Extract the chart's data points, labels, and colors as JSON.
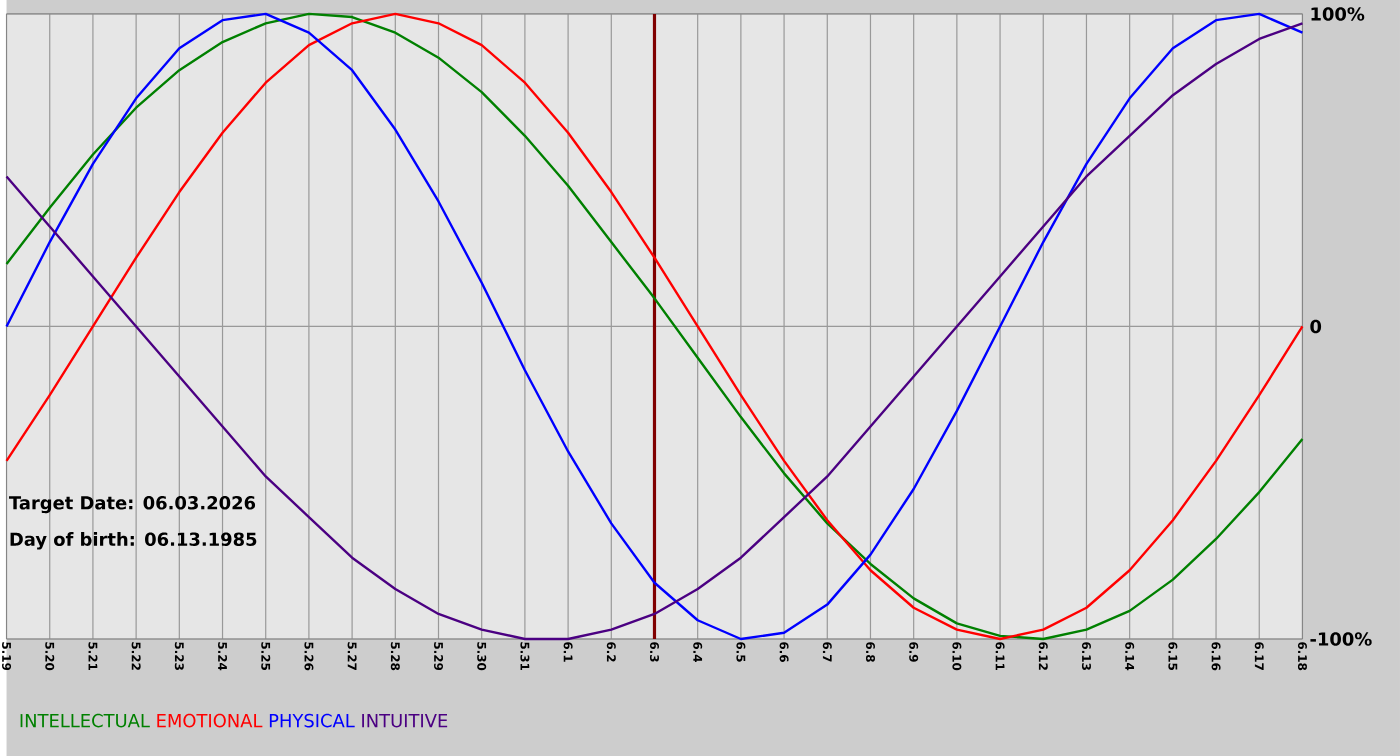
{
  "chart_data": {
    "type": "line",
    "categories": [
      "5.19",
      "5.20",
      "5.21",
      "5.22",
      "5.23",
      "5.24",
      "5.25",
      "5.26",
      "5.27",
      "5.28",
      "5.29",
      "5.30",
      "5.31",
      "6.1",
      "6.2",
      "6.3",
      "6.4",
      "6.5",
      "6.6",
      "6.7",
      "6.8",
      "6.9",
      "6.10",
      "6.11",
      "6.12",
      "6.13",
      "6.14",
      "6.15",
      "6.16",
      "6.17",
      "6.18"
    ],
    "series": [
      {
        "name": "INTELLECTUAL",
        "color": "#008000",
        "values": [
          20,
          38,
          55,
          70,
          82,
          91,
          97,
          100,
          99,
          94,
          86,
          75,
          61,
          45,
          27,
          9,
          -10,
          -29,
          -47,
          -63,
          -76,
          -87,
          -95,
          -99,
          -100,
          -97,
          -91,
          -81,
          -68,
          -53,
          -36
        ]
      },
      {
        "name": "EMOTIONAL",
        "color": "#ff0000",
        "values": [
          -43,
          -22,
          0,
          22,
          43,
          62,
          78,
          90,
          97,
          100,
          97,
          90,
          78,
          62,
          43,
          22,
          0,
          -22,
          -43,
          -62,
          -78,
          -90,
          -97,
          -100,
          -97,
          -90,
          -78,
          -62,
          -43,
          -22,
          0
        ]
      },
      {
        "name": "PHYSICAL",
        "color": "#0000ff",
        "values": [
          0,
          27,
          52,
          73,
          89,
          98,
          100,
          94,
          82,
          63,
          40,
          14,
          -14,
          -40,
          -63,
          -82,
          -94,
          -100,
          -98,
          -89,
          -73,
          -52,
          -27,
          0,
          27,
          52,
          73,
          89,
          98,
          100,
          94
        ]
      },
      {
        "name": "INTUITIVE",
        "color": "#4b0082",
        "values": [
          48,
          32,
          16,
          0,
          -16,
          -32,
          -48,
          -61,
          -74,
          -84,
          -92,
          -97,
          -100,
          -100,
          -97,
          -92,
          -84,
          -74,
          -61,
          -48,
          -32,
          -16,
          0,
          16,
          32,
          48,
          61,
          74,
          84,
          92,
          97
        ]
      }
    ],
    "ylim": [
      -100,
      100
    ],
    "yticks": [
      {
        "value": -100,
        "label": "-100%"
      },
      0,
      {
        "value": 100,
        "label": "100%"
      }
    ],
    "ref_lines": [
      {
        "axis": "x",
        "value": "6.3",
        "color": "#800000"
      }
    ],
    "annotations": [
      "Target Date: 06.03.2026",
      "Day of birth: 06.13.1985"
    ],
    "grid": true,
    "legend": "bottom left",
    "marker": "none",
    "line_style": "solid"
  }
}
